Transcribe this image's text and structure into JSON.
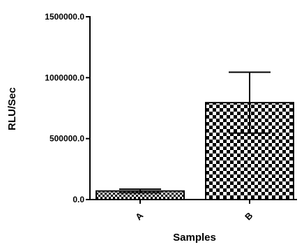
{
  "chart_data": {
    "type": "bar",
    "title": "",
    "xlabel": "Samples",
    "ylabel": "RLU/Sec",
    "categories": [
      "A",
      "B"
    ],
    "values": [
      70000,
      795000
    ],
    "error_bars": [
      15000,
      250000
    ],
    "ylim": [
      0,
      1500000
    ],
    "yticks": [
      0,
      500000,
      1000000,
      1500000
    ],
    "ytick_labels": [
      "0.0",
      "500000.0",
      "1000000.0",
      "1500000.0"
    ],
    "grid": false,
    "legend": "none",
    "bar_fill": "checkerboard",
    "colors": {
      "axis": "#000000",
      "bar_dark": "#000000",
      "bar_light": "#ffffff"
    }
  }
}
